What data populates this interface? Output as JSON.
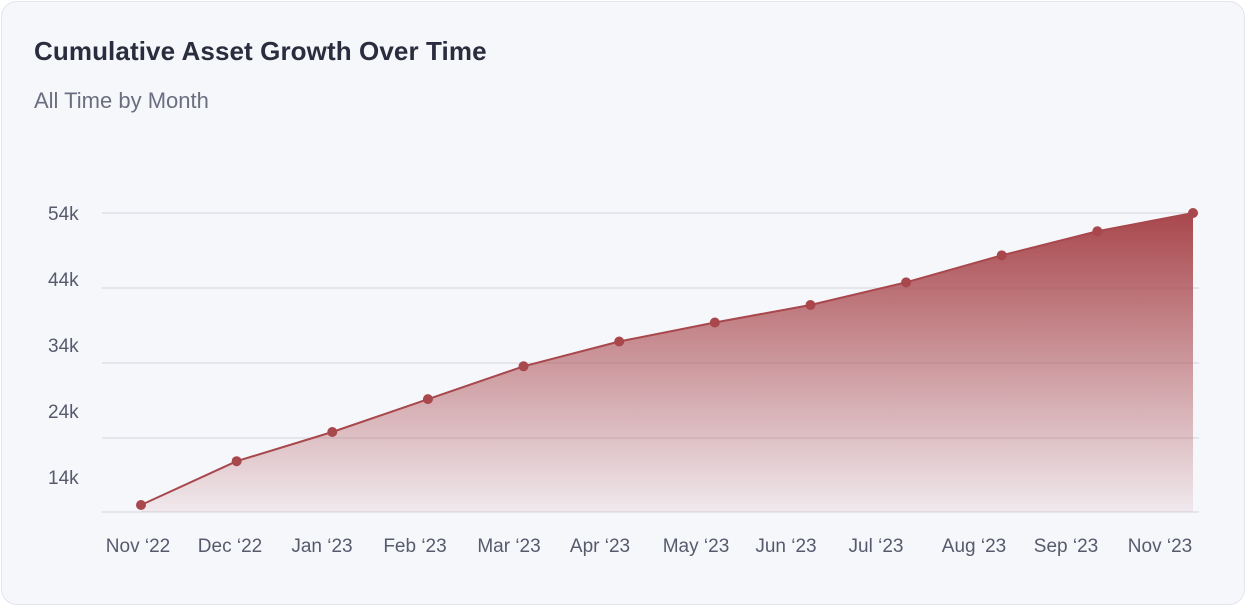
{
  "header": {
    "title": "Cumulative Asset Growth Over Time",
    "subtitle": "All Time by Month"
  },
  "colors": {
    "series": "#a8474c",
    "area_top": "#a8474c",
    "grid": "#dfe1e8",
    "background": "#f6f7fb"
  },
  "chart_data": {
    "type": "area",
    "title": "Cumulative Asset Growth Over Time",
    "subtitle": "All Time by Month",
    "categories": [
      "Nov ‘22",
      "Dec ‘22",
      "Jan ‘23",
      "Feb ‘23",
      "Mar ‘23",
      "Apr ‘23",
      "May ‘23",
      "Jun ‘23",
      "Jul ‘23",
      "Aug ‘23",
      "Sep ‘23",
      "Nov ‘23"
    ],
    "values": [
      14000,
      20000,
      24000,
      28500,
      33000,
      36400,
      39000,
      41400,
      44500,
      48200,
      51500,
      54000
    ],
    "yticks": [
      54000,
      44000,
      34000,
      24000,
      14000
    ],
    "ytick_labels": [
      "54k",
      "44k",
      "34k",
      "24k",
      "14k"
    ],
    "ylim": [
      14000,
      54000
    ],
    "grid": true,
    "legend": "none",
    "markers": true
  }
}
